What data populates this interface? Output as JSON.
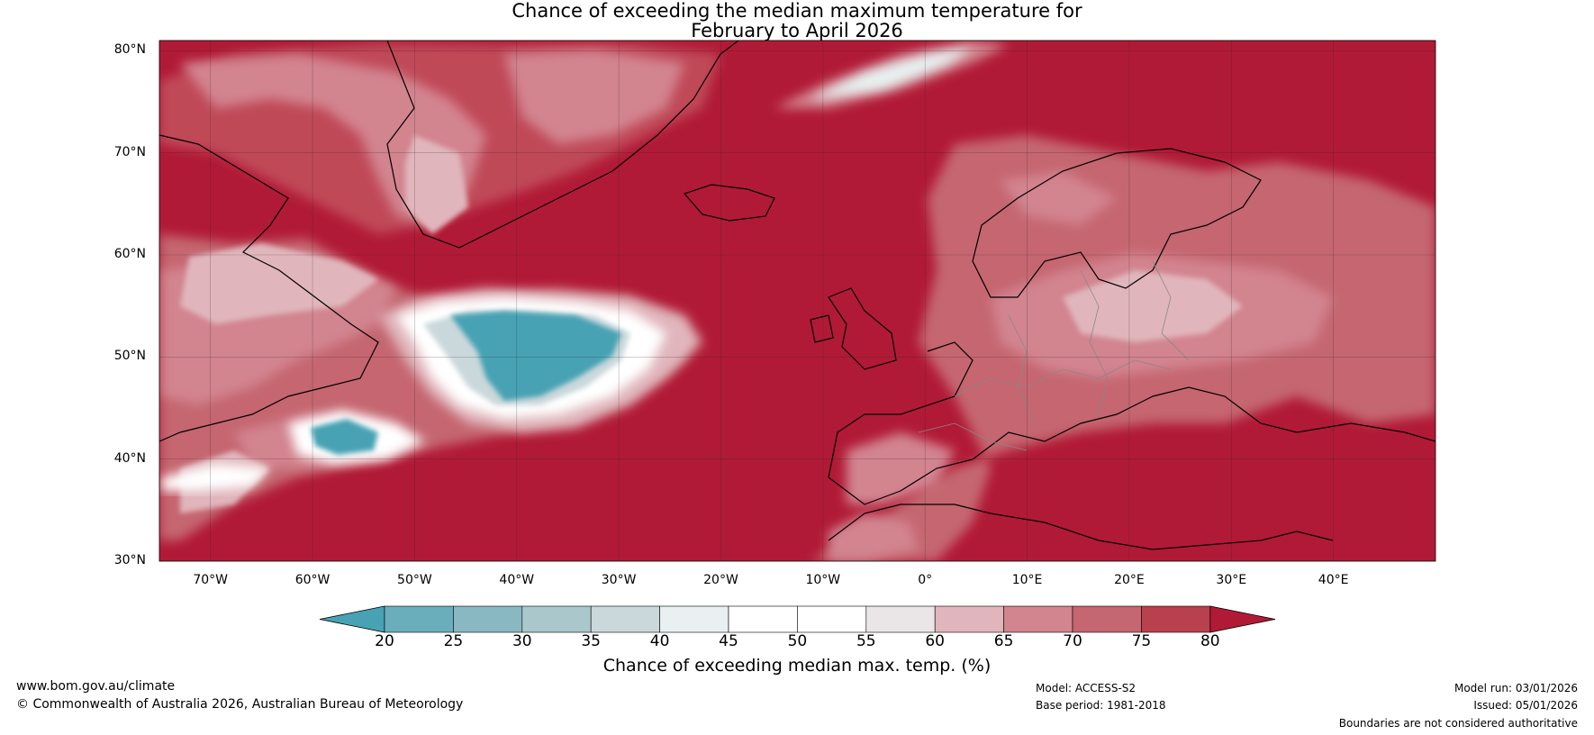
{
  "title": {
    "line1": "Chance of exceeding the median maximum temperature for",
    "line2": "February to April 2026"
  },
  "map": {
    "lat_labels": [
      "80°N",
      "70°N",
      "60°N",
      "50°N",
      "40°N",
      "30°N"
    ],
    "lon_labels": [
      "70°W",
      "60°W",
      "50°W",
      "40°W",
      "30°W",
      "20°W",
      "10°W",
      "0°",
      "10°E",
      "20°E",
      "30°E",
      "40°E"
    ],
    "colors": {
      "background_high": "#b11a36",
      "coastline": "#000000",
      "borders": "#888888"
    }
  },
  "colorbar": {
    "ticks": [
      "20",
      "25",
      "30",
      "35",
      "40",
      "45",
      "50",
      "55",
      "60",
      "65",
      "70",
      "75",
      "80"
    ],
    "colors": [
      "#47a2b4",
      "#6aaebc",
      "#89b8c3",
      "#aac7cc",
      "#cbd8db",
      "#e8f0f1",
      "#ffffff",
      "#ffffff",
      "#eae6e7",
      "#e0b6bc",
      "#d2848f",
      "#c56670",
      "#b9404e",
      "#b11a36"
    ],
    "label": "Chance of exceeding median max. temp. (%)"
  },
  "footer": {
    "url": "www.bom.gov.au/climate",
    "copyright": "© Commonwealth of Australia 2026, Australian Bureau of Meteorology",
    "model": "Model: ACCESS-S2",
    "base_period": "Base period: 1981-2018",
    "model_run": "Model run: 03/01/2026",
    "issued": "Issued: 05/01/2026",
    "disclaimer": "Boundaries are not considered authoritative"
  }
}
